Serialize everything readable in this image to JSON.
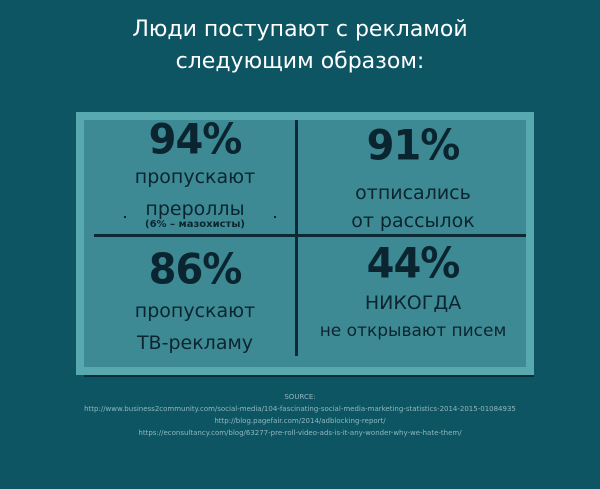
{
  "title": {
    "line1": "Люди поступают с рекламой",
    "line2": "следующим образом:"
  },
  "cells": [
    {
      "percent": "94%",
      "line1": "пропускают",
      "line2": "прероллы",
      "note": "(6% – мазохисты)"
    },
    {
      "percent": "91%",
      "line1": "отписались",
      "line2": "от рассылок"
    },
    {
      "percent": "86%",
      "line1": "пропускают",
      "line2": "ТВ-рекламу"
    },
    {
      "percent": "44%",
      "line1": "НИКОГДА",
      "line2": "не открывают писем"
    }
  ],
  "sources": {
    "heading": "SOURCE:",
    "items": [
      "http://www.business2community.com/social-media/104-fascinating-social-media-marketing-statistics-2014-2015-01084935",
      "http://blog.pagefair.com/2014/adblocking-report/",
      "https://econsultancy.com/blog/63277-pre-roll-video-ads-is-it-any-wonder-why-we-hate-them/"
    ]
  },
  "colors": {
    "background": "#0d5563",
    "card": "#3d8a94",
    "card_border": "#58a8b0",
    "ink": "#0b2530"
  }
}
